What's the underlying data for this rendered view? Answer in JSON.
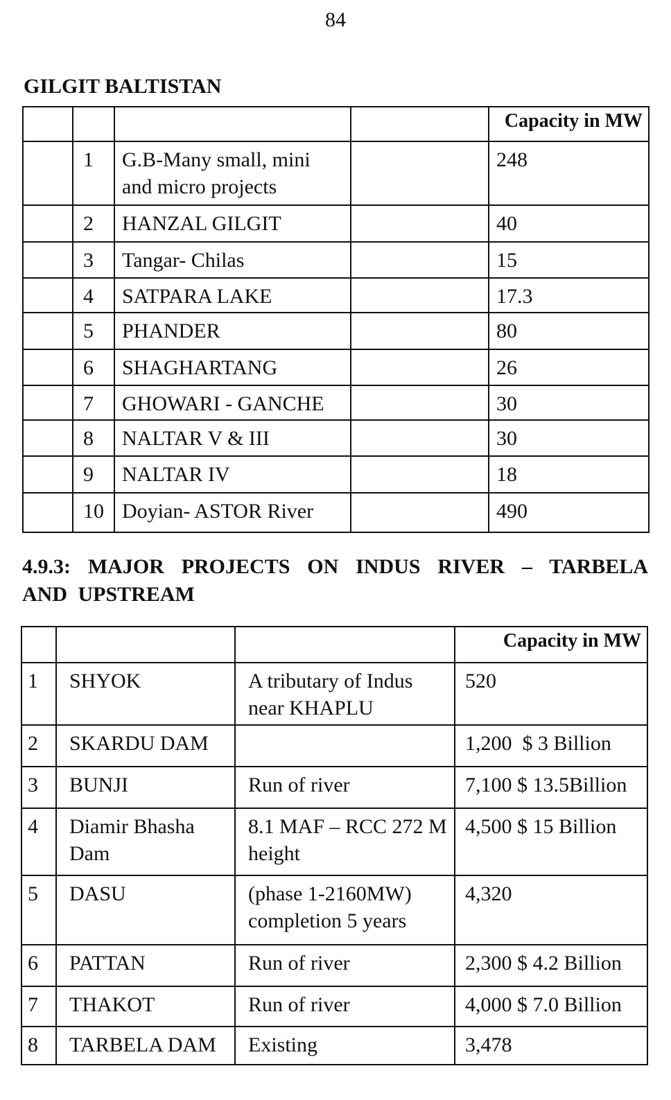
{
  "page_number": "84",
  "section1": {
    "title": "GILGIT BALTISTAN",
    "header": {
      "capacity": "Capacity in MW"
    },
    "rows": [
      {
        "no": "1",
        "name": "G.B-Many small, mini and micro projects",
        "note": "",
        "capacity": "248"
      },
      {
        "no": "2",
        "name": "HANZAL GILGIT",
        "note": "",
        "capacity": "40"
      },
      {
        "no": "3",
        "name": "Tangar- Chilas",
        "note": "",
        "capacity": "15"
      },
      {
        "no": "4",
        "name": "SATPARA LAKE",
        "note": "",
        "capacity": "17.3"
      },
      {
        "no": "5",
        "name": "PHANDER",
        "note": "",
        "capacity": "80"
      },
      {
        "no": "6",
        "name": "SHAGHARTANG",
        "note": "",
        "capacity": "26"
      },
      {
        "no": "7",
        "name": "GHOWARI - GANCHE",
        "note": "",
        "capacity": "30"
      },
      {
        "no": "8",
        "name": "NALTAR V & III",
        "note": "",
        "capacity": "30"
      },
      {
        "no": "9",
        "name": "NALTAR IV",
        "note": "",
        "capacity": "18"
      },
      {
        "no": "10",
        "name": "Doyian- ASTOR River",
        "note": "",
        "capacity": "490"
      }
    ]
  },
  "section2": {
    "title": "4.9.3: MAJOR PROJECTS ON INDUS RIVER – TARBELA AND UPSTREAM",
    "header": {
      "capacity": "Capacity in MW"
    },
    "rows": [
      {
        "no": "1",
        "name": "SHYOK",
        "note": "A tributary of Indus near KHAPLU",
        "capacity": "520"
      },
      {
        "no": "2",
        "name": "SKARDU DAM",
        "note": "",
        "capacity": "1,200  $ 3 Billion"
      },
      {
        "no": "3",
        "name": "BUNJI",
        "note": "Run of river",
        "capacity": "7,100 $ 13.5Billion"
      },
      {
        "no": "4",
        "name": "Diamir Bhasha Dam",
        "note": "8.1 MAF – RCC 272 M height",
        "capacity": "4,500 $ 15 Billion"
      },
      {
        "no": "5",
        "name": "DASU",
        "note": "(phase 1-2160MW) completion 5 years",
        "capacity": "4,320"
      },
      {
        "no": "6",
        "name": "PATTAN",
        "note": "Run of river",
        "capacity": "2,300 $ 4.2 Billion"
      },
      {
        "no": "7",
        "name": "THAKOT",
        "note": "Run of river",
        "capacity": "4,000 $ 7.0 Billion"
      },
      {
        "no": "8",
        "name": "TARBELA DAM",
        "note": "Existing",
        "capacity": "3,478"
      }
    ]
  }
}
